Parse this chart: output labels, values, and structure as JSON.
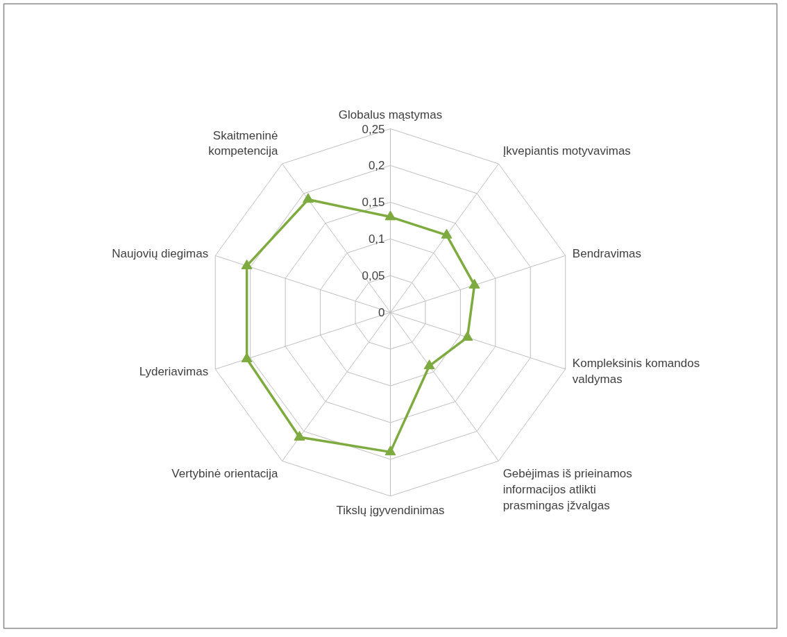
{
  "chart_data": {
    "type": "radar",
    "categories": [
      "Globalus mąstymas",
      "Įkvepiantis motyvavimas",
      "Bendravimas",
      "Kompleksinis komandos valdymas",
      "Gebėjimas iš prieinamos informacijos atlikti prasmingas įžvalgas",
      "Tikslų įgyvendinimas",
      "Vertybinė orientacija",
      "Lyderiavimas",
      "Naujovių diegimas",
      "Skaitmeninė kompetencija"
    ],
    "series": [
      {
        "color": "#7eab3f",
        "values": [
          0.13,
          0.13,
          0.12,
          0.11,
          0.09,
          0.19,
          0.21,
          0.205,
          0.205,
          0.19
        ]
      }
    ],
    "ylim": [
      0,
      0.25
    ],
    "yticks": [
      0,
      {
        "value": 0.05,
        "label": "0,05"
      },
      {
        "value": 0.1,
        "label": "0,1"
      },
      {
        "value": 0.15,
        "label": "0,15"
      },
      {
        "value": 0.2,
        "label": "0,2"
      },
      {
        "value": 0.25,
        "label": "0,25"
      }
    ],
    "grid": true,
    "marker": "triangle",
    "line_style": "solid"
  }
}
